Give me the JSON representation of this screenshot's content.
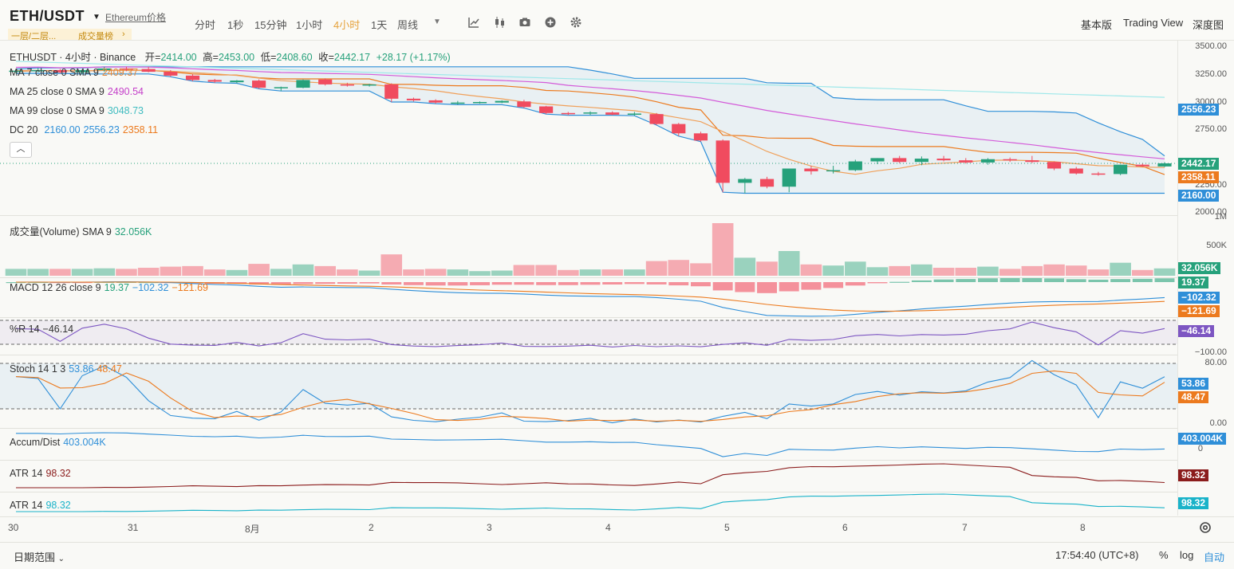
{
  "header": {
    "pair": "ETH/USDT",
    "pair_sub": "Ethereum价格",
    "tags": [
      "一层/二层...",
      "成交量榜"
    ],
    "timeframes": [
      "分时",
      "1秒",
      "15分钟",
      "1小时",
      "4小时",
      "1天",
      "周线"
    ],
    "active_timeframe": "4小时",
    "icons": [
      "dropdown-icon",
      "indicator-icon",
      "candle-type-icon",
      "camera-icon",
      "add-icon",
      "settings-icon"
    ],
    "views": [
      "基本版",
      "Trading View",
      "深度图"
    ]
  },
  "legend": {
    "symbol_line": "ETHUSDT · 4小时 · Binance",
    "open_label": "开=",
    "open": "2414.00",
    "high_label": "高=",
    "high": "2453.00",
    "low_label": "低=",
    "low": "2408.60",
    "close_label": "收=",
    "close": "2442.17",
    "change": "+28.17 (+1.17%)",
    "ma7": {
      "label": "MA 7 close 0 SMA 9",
      "value": "2409.37"
    },
    "ma25": {
      "label": "MA 25 close 0 SMA 9",
      "value": "2490.54"
    },
    "ma99": {
      "label": "MA 99 close 0 SMA 9",
      "value": "3048.73"
    },
    "dc": {
      "label": "DC 20",
      "v1": "2160.00",
      "v2": "2556.23",
      "v3": "2358.11"
    }
  },
  "price_axis": [
    "3500.00",
    "3250.00",
    "3000.00",
    "2750.00",
    "2250.00",
    "2000.00"
  ],
  "price_badges": {
    "upper": "2556.23",
    "last": "2442.17",
    "mid": "2358.11",
    "lower": "2160.00"
  },
  "volume": {
    "label": "成交量(Volume) SMA 9",
    "value": "32.056K",
    "axis": [
      "1M",
      "500K"
    ],
    "badge": "32.056K"
  },
  "macd": {
    "label": "MACD 12 26 close 9",
    "v1": "19.37",
    "v2": "−102.32",
    "v3": "−121.69"
  },
  "willr": {
    "label": "%R 14",
    "value": "−46.14",
    "axis_low": "−100.00",
    "badge": "−46.14"
  },
  "stoch": {
    "label": "Stoch 14 1 3",
    "k": "53.86",
    "d": "48.47",
    "axis": [
      "80.00",
      "0.00"
    ]
  },
  "accum": {
    "label": "Accum/Dist",
    "value": "403.004K",
    "axis": "0",
    "badge": "403.004K"
  },
  "atr1": {
    "label": "ATR 14",
    "value": "98.32"
  },
  "atr2": {
    "label": "ATR 14",
    "value": "98.32"
  },
  "x_axis": [
    "30",
    "31",
    "8月",
    "2",
    "3",
    "4",
    "5",
    "6",
    "7",
    "8"
  ],
  "footer": {
    "date_range": "日期范围",
    "time": "17:54:40 (UTC+8)",
    "pct": "%",
    "log": "log",
    "auto": "自动"
  },
  "colors": {
    "up": "#26a17b",
    "down": "#f04b5f",
    "ma7": "#f0a05a",
    "ma25": "#d45bd9",
    "ma99": "#9ee8ea",
    "dc": "#2f8fd8",
    "dc_mid": "#ec7a1e",
    "willr": "#7d56c2",
    "atr1": "#8b1c1c",
    "atr2": "#1ab3c9"
  },
  "chart_data": {
    "type": "candlestick",
    "title": "ETHUSDT · 4小时 · Binance",
    "ylim": [
      2000,
      3500
    ],
    "candles": [
      {
        "o": 3280,
        "h": 3300,
        "l": 3260,
        "c": 3285
      },
      {
        "o": 3285,
        "h": 3310,
        "l": 3270,
        "c": 3290
      },
      {
        "o": 3290,
        "h": 3300,
        "l": 3260,
        "c": 3270
      },
      {
        "o": 3270,
        "h": 3295,
        "l": 3255,
        "c": 3290
      },
      {
        "o": 3290,
        "h": 3320,
        "l": 3275,
        "c": 3305
      },
      {
        "o": 3305,
        "h": 3320,
        "l": 3280,
        "c": 3295
      },
      {
        "o": 3300,
        "h": 3320,
        "l": 3270,
        "c": 3275
      },
      {
        "o": 3275,
        "h": 3290,
        "l": 3230,
        "c": 3240
      },
      {
        "o": 3240,
        "h": 3255,
        "l": 3190,
        "c": 3200
      },
      {
        "o": 3200,
        "h": 3210,
        "l": 3175,
        "c": 3185
      },
      {
        "o": 3180,
        "h": 3200,
        "l": 3170,
        "c": 3195
      },
      {
        "o": 3195,
        "h": 3205,
        "l": 3120,
        "c": 3130
      },
      {
        "o": 3125,
        "h": 3140,
        "l": 3100,
        "c": 3135
      },
      {
        "o": 3130,
        "h": 3205,
        "l": 3125,
        "c": 3200
      },
      {
        "o": 3205,
        "h": 3215,
        "l": 3150,
        "c": 3160
      },
      {
        "o": 3160,
        "h": 3175,
        "l": 3140,
        "c": 3155
      },
      {
        "o": 3150,
        "h": 3165,
        "l": 3140,
        "c": 3160
      },
      {
        "o": 3160,
        "h": 3170,
        "l": 3000,
        "c": 3030
      },
      {
        "o": 3030,
        "h": 3040,
        "l": 3005,
        "c": 3015
      },
      {
        "o": 3015,
        "h": 3025,
        "l": 2985,
        "c": 2995
      },
      {
        "o": 2995,
        "h": 3010,
        "l": 2975,
        "c": 2995
      },
      {
        "o": 2995,
        "h": 3005,
        "l": 2985,
        "c": 3000
      },
      {
        "o": 2995,
        "h": 3015,
        "l": 2990,
        "c": 3010
      },
      {
        "o": 3005,
        "h": 3020,
        "l": 2945,
        "c": 2955
      },
      {
        "o": 2960,
        "h": 2965,
        "l": 2890,
        "c": 2900
      },
      {
        "o": 2900,
        "h": 2910,
        "l": 2880,
        "c": 2895
      },
      {
        "o": 2895,
        "h": 2915,
        "l": 2880,
        "c": 2905
      },
      {
        "o": 2905,
        "h": 2915,
        "l": 2880,
        "c": 2885
      },
      {
        "o": 2885,
        "h": 2910,
        "l": 2875,
        "c": 2895
      },
      {
        "o": 2890,
        "h": 2900,
        "l": 2790,
        "c": 2800
      },
      {
        "o": 2800,
        "h": 2810,
        "l": 2690,
        "c": 2715
      },
      {
        "o": 2715,
        "h": 2730,
        "l": 2640,
        "c": 2650
      },
      {
        "o": 2650,
        "h": 2660,
        "l": 2180,
        "c": 2265
      },
      {
        "o": 2265,
        "h": 2310,
        "l": 2170,
        "c": 2300
      },
      {
        "o": 2300,
        "h": 2320,
        "l": 2215,
        "c": 2230
      },
      {
        "o": 2230,
        "h": 2380,
        "l": 2180,
        "c": 2395
      },
      {
        "o": 2395,
        "h": 2420,
        "l": 2340,
        "c": 2370
      },
      {
        "o": 2370,
        "h": 2420,
        "l": 2350,
        "c": 2380
      },
      {
        "o": 2380,
        "h": 2475,
        "l": 2370,
        "c": 2460
      },
      {
        "o": 2460,
        "h": 2490,
        "l": 2435,
        "c": 2490
      },
      {
        "o": 2490,
        "h": 2510,
        "l": 2445,
        "c": 2455
      },
      {
        "o": 2455,
        "h": 2505,
        "l": 2425,
        "c": 2485
      },
      {
        "o": 2485,
        "h": 2510,
        "l": 2460,
        "c": 2470
      },
      {
        "o": 2470,
        "h": 2490,
        "l": 2440,
        "c": 2450
      },
      {
        "o": 2450,
        "h": 2490,
        "l": 2430,
        "c": 2480
      },
      {
        "o": 2480,
        "h": 2495,
        "l": 2455,
        "c": 2470
      },
      {
        "o": 2470,
        "h": 2510,
        "l": 2445,
        "c": 2455
      },
      {
        "o": 2455,
        "h": 2460,
        "l": 2380,
        "c": 2395
      },
      {
        "o": 2395,
        "h": 2410,
        "l": 2340,
        "c": 2350
      },
      {
        "o": 2350,
        "h": 2365,
        "l": 2330,
        "c": 2345
      },
      {
        "o": 2345,
        "h": 2430,
        "l": 2335,
        "c": 2430
      },
      {
        "o": 2430,
        "h": 2440,
        "l": 2410,
        "c": 2415
      },
      {
        "o": 2414,
        "h": 2453,
        "l": 2408.6,
        "c": 2442.17
      }
    ]
  }
}
